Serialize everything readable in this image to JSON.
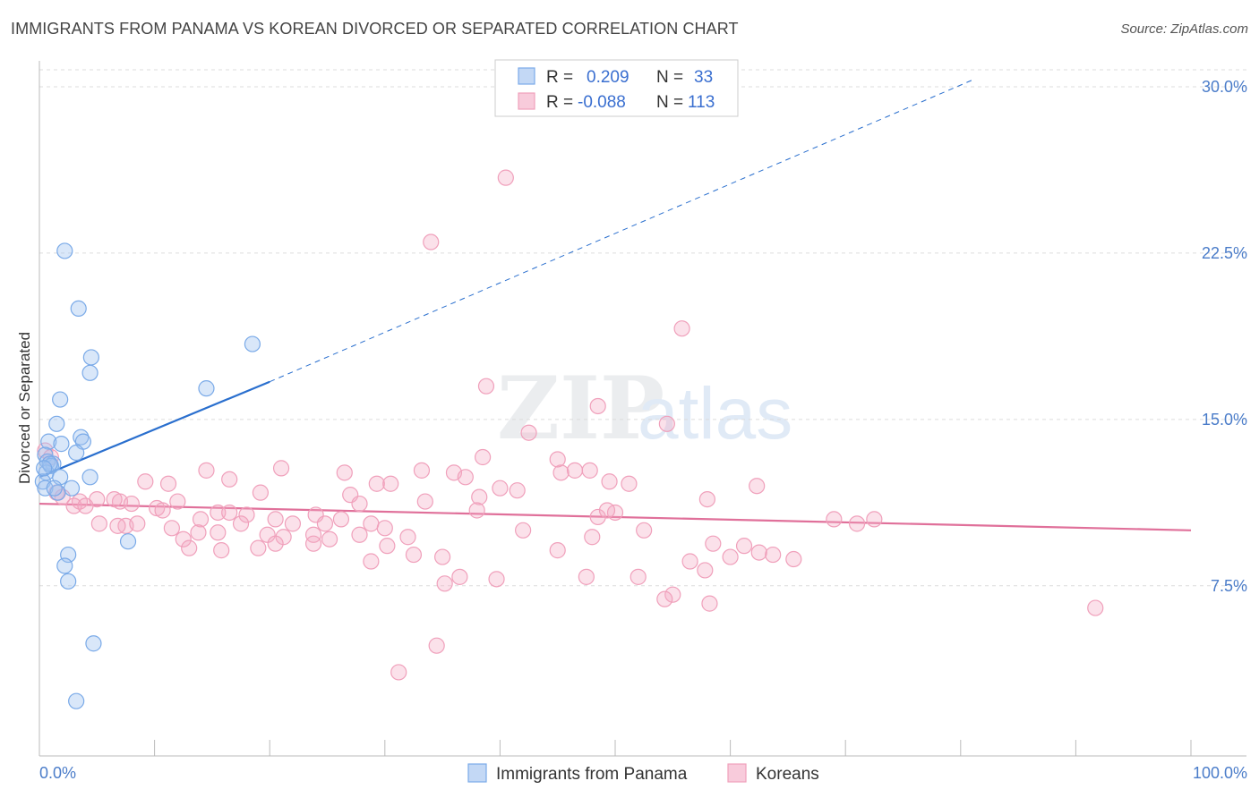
{
  "title": "IMMIGRANTS FROM PANAMA VS KOREAN DIVORCED OR SEPARATED CORRELATION CHART",
  "source": "Source: ZipAtlas.com",
  "watermark": {
    "zip": "ZIP",
    "atlas": "atlas"
  },
  "legend": {
    "rows": [
      {
        "r_label": "R =",
        "r_value": "0.209",
        "n_label": "N =",
        "n_value": "33"
      },
      {
        "r_label": "R =",
        "r_value": "-0.088",
        "n_label": "N =",
        "n_value": "113"
      }
    ]
  },
  "chart_data": {
    "type": "scatter",
    "ylabel": "Divorced or Separated",
    "xlabel": "",
    "xlim": [
      0,
      100
    ],
    "ylim": [
      0,
      31.0
    ],
    "x_tick_labels": [
      "0.0%",
      "100.0%"
    ],
    "y_ticks": [
      7.5,
      15.0,
      22.5,
      30.0
    ],
    "y_tick_labels": [
      "7.5%",
      "15.0%",
      "22.5%",
      "30.0%"
    ],
    "grid": true,
    "legend_position": "top-center",
    "colors": {
      "panama": "#7aaae8",
      "korean": "#f0a0bb",
      "panama_line": "#2a6fce",
      "korean_line": "#e0709a"
    },
    "series": [
      {
        "name": "Immigrants from Panama",
        "trend": {
          "x0": 0,
          "y0": 12.4,
          "x1": 20,
          "y1": 16.7,
          "dashed_to_x": 81,
          "dashed_to_y": 30.3
        },
        "points": [
          [
            2.2,
            22.6
          ],
          [
            3.4,
            20.0
          ],
          [
            4.5,
            17.8
          ],
          [
            4.4,
            17.1
          ],
          [
            1.8,
            15.9
          ],
          [
            1.5,
            14.8
          ],
          [
            3.6,
            14.2
          ],
          [
            3.8,
            14.0
          ],
          [
            0.8,
            14.0
          ],
          [
            1.9,
            13.9
          ],
          [
            3.2,
            13.5
          ],
          [
            0.5,
            13.4
          ],
          [
            0.7,
            13.1
          ],
          [
            1.2,
            13.0
          ],
          [
            1.0,
            12.9
          ],
          [
            0.6,
            12.6
          ],
          [
            1.8,
            12.4
          ],
          [
            4.4,
            12.4
          ],
          [
            0.3,
            12.2
          ],
          [
            0.5,
            11.9
          ],
          [
            2.8,
            11.9
          ],
          [
            1.6,
            11.7
          ],
          [
            1.3,
            11.9
          ],
          [
            7.7,
            9.5
          ],
          [
            2.5,
            8.9
          ],
          [
            2.2,
            8.4
          ],
          [
            2.5,
            7.7
          ],
          [
            14.5,
            16.4
          ],
          [
            18.5,
            18.4
          ],
          [
            4.7,
            4.9
          ],
          [
            3.2,
            2.3
          ],
          [
            0.9,
            13.0
          ],
          [
            0.4,
            12.8
          ]
        ]
      },
      {
        "name": "Koreans",
        "trend": {
          "x0": 0,
          "y0": 11.2,
          "x1": 100,
          "y1": 10.0
        },
        "points": [
          [
            40.5,
            25.9
          ],
          [
            34.0,
            23.0
          ],
          [
            55.8,
            19.1
          ],
          [
            38.8,
            16.5
          ],
          [
            48.5,
            15.6
          ],
          [
            54.5,
            14.8
          ],
          [
            42.5,
            14.4
          ],
          [
            0.5,
            13.6
          ],
          [
            1.0,
            13.3
          ],
          [
            38.5,
            13.3
          ],
          [
            21.0,
            12.8
          ],
          [
            33.2,
            12.7
          ],
          [
            46.5,
            12.7
          ],
          [
            47.8,
            12.7
          ],
          [
            14.5,
            12.7
          ],
          [
            26.5,
            12.6
          ],
          [
            36.0,
            12.6
          ],
          [
            45.3,
            12.6
          ],
          [
            37.0,
            12.4
          ],
          [
            16.5,
            12.3
          ],
          [
            9.2,
            12.2
          ],
          [
            49.5,
            12.2
          ],
          [
            51.2,
            12.1
          ],
          [
            29.3,
            12.1
          ],
          [
            30.5,
            12.1
          ],
          [
            11.2,
            12.1
          ],
          [
            62.3,
            12.0
          ],
          [
            40.0,
            11.9
          ],
          [
            41.5,
            11.8
          ],
          [
            19.2,
            11.7
          ],
          [
            27.0,
            11.6
          ],
          [
            1.5,
            11.7
          ],
          [
            2.0,
            11.5
          ],
          [
            38.2,
            11.5
          ],
          [
            58.0,
            11.4
          ],
          [
            5.0,
            11.4
          ],
          [
            7.0,
            11.3
          ],
          [
            6.5,
            11.4
          ],
          [
            3.5,
            11.3
          ],
          [
            27.8,
            11.2
          ],
          [
            12.0,
            11.3
          ],
          [
            33.5,
            11.3
          ],
          [
            8.0,
            11.2
          ],
          [
            3.0,
            11.1
          ],
          [
            4.0,
            11.1
          ],
          [
            10.2,
            11.0
          ],
          [
            10.7,
            10.9
          ],
          [
            15.5,
            10.8
          ],
          [
            16.5,
            10.8
          ],
          [
            18.0,
            10.7
          ],
          [
            24.0,
            10.7
          ],
          [
            38.0,
            10.9
          ],
          [
            50.0,
            10.8
          ],
          [
            48.5,
            10.6
          ],
          [
            20.5,
            10.5
          ],
          [
            14.0,
            10.5
          ],
          [
            26.2,
            10.5
          ],
          [
            22.0,
            10.3
          ],
          [
            24.8,
            10.3
          ],
          [
            17.5,
            10.3
          ],
          [
            7.5,
            10.2
          ],
          [
            28.8,
            10.3
          ],
          [
            5.2,
            10.3
          ],
          [
            8.5,
            10.3
          ],
          [
            71.0,
            10.3
          ],
          [
            72.5,
            10.5
          ],
          [
            69.0,
            10.5
          ],
          [
            6.8,
            10.2
          ],
          [
            30.0,
            10.1
          ],
          [
            11.5,
            10.1
          ],
          [
            42.0,
            10.0
          ],
          [
            52.5,
            10.0
          ],
          [
            13.8,
            9.9
          ],
          [
            23.8,
            9.8
          ],
          [
            15.5,
            9.9
          ],
          [
            27.8,
            9.8
          ],
          [
            19.8,
            9.8
          ],
          [
            21.2,
            9.7
          ],
          [
            48.0,
            9.7
          ],
          [
            32.0,
            9.7
          ],
          [
            12.5,
            9.6
          ],
          [
            25.2,
            9.6
          ],
          [
            20.5,
            9.4
          ],
          [
            23.8,
            9.4
          ],
          [
            58.5,
            9.4
          ],
          [
            61.2,
            9.3
          ],
          [
            30.2,
            9.3
          ],
          [
            19.0,
            9.2
          ],
          [
            15.8,
            9.1
          ],
          [
            13.0,
            9.2
          ],
          [
            62.5,
            9.0
          ],
          [
            63.7,
            8.9
          ],
          [
            45.0,
            9.1
          ],
          [
            35.0,
            8.8
          ],
          [
            32.5,
            8.9
          ],
          [
            60.0,
            8.8
          ],
          [
            65.5,
            8.7
          ],
          [
            56.5,
            8.6
          ],
          [
            57.8,
            8.2
          ],
          [
            28.8,
            8.6
          ],
          [
            52.0,
            7.9
          ],
          [
            36.5,
            7.9
          ],
          [
            39.7,
            7.8
          ],
          [
            47.5,
            7.9
          ],
          [
            55.0,
            7.1
          ],
          [
            54.3,
            6.9
          ],
          [
            58.2,
            6.7
          ],
          [
            91.7,
            6.5
          ],
          [
            34.5,
            4.8
          ],
          [
            31.2,
            3.6
          ],
          [
            35.2,
            7.6
          ],
          [
            49.3,
            10.9
          ],
          [
            45.0,
            13.2
          ]
        ]
      }
    ]
  },
  "bottom_legend": {
    "items": [
      {
        "label": "Immigrants from Panama"
      },
      {
        "label": "Koreans"
      }
    ]
  }
}
